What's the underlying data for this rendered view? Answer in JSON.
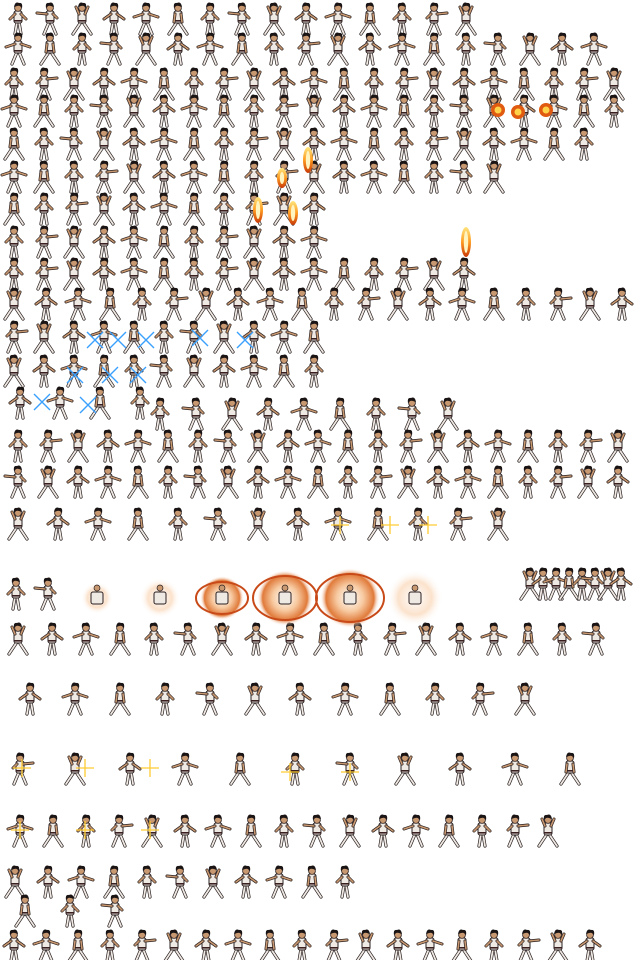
{
  "sheet": {
    "kind": "sprite-sheet",
    "subject": "martial-artist-in-white-gi",
    "background": "#ffffff",
    "colors": {
      "hair": "#1a1414",
      "skin": "#c89870",
      "gi": "#efe9e4",
      "gi_shadow": "#8a6f6a",
      "outline": "#2a2020",
      "belt": "#3a2020",
      "fire_outer": "#e05a10",
      "fire_inner": "#ffd24a",
      "aura_glow": "#f7c9a0",
      "aura_ring": "#c84a18",
      "energy_blue": "#3aa0ff",
      "spark_yellow": "#ffcc33"
    },
    "effects": [
      "fire-pillar",
      "fireball",
      "blue-spark",
      "aura-burst",
      "orange-ring",
      "yellow-spark"
    ]
  }
}
